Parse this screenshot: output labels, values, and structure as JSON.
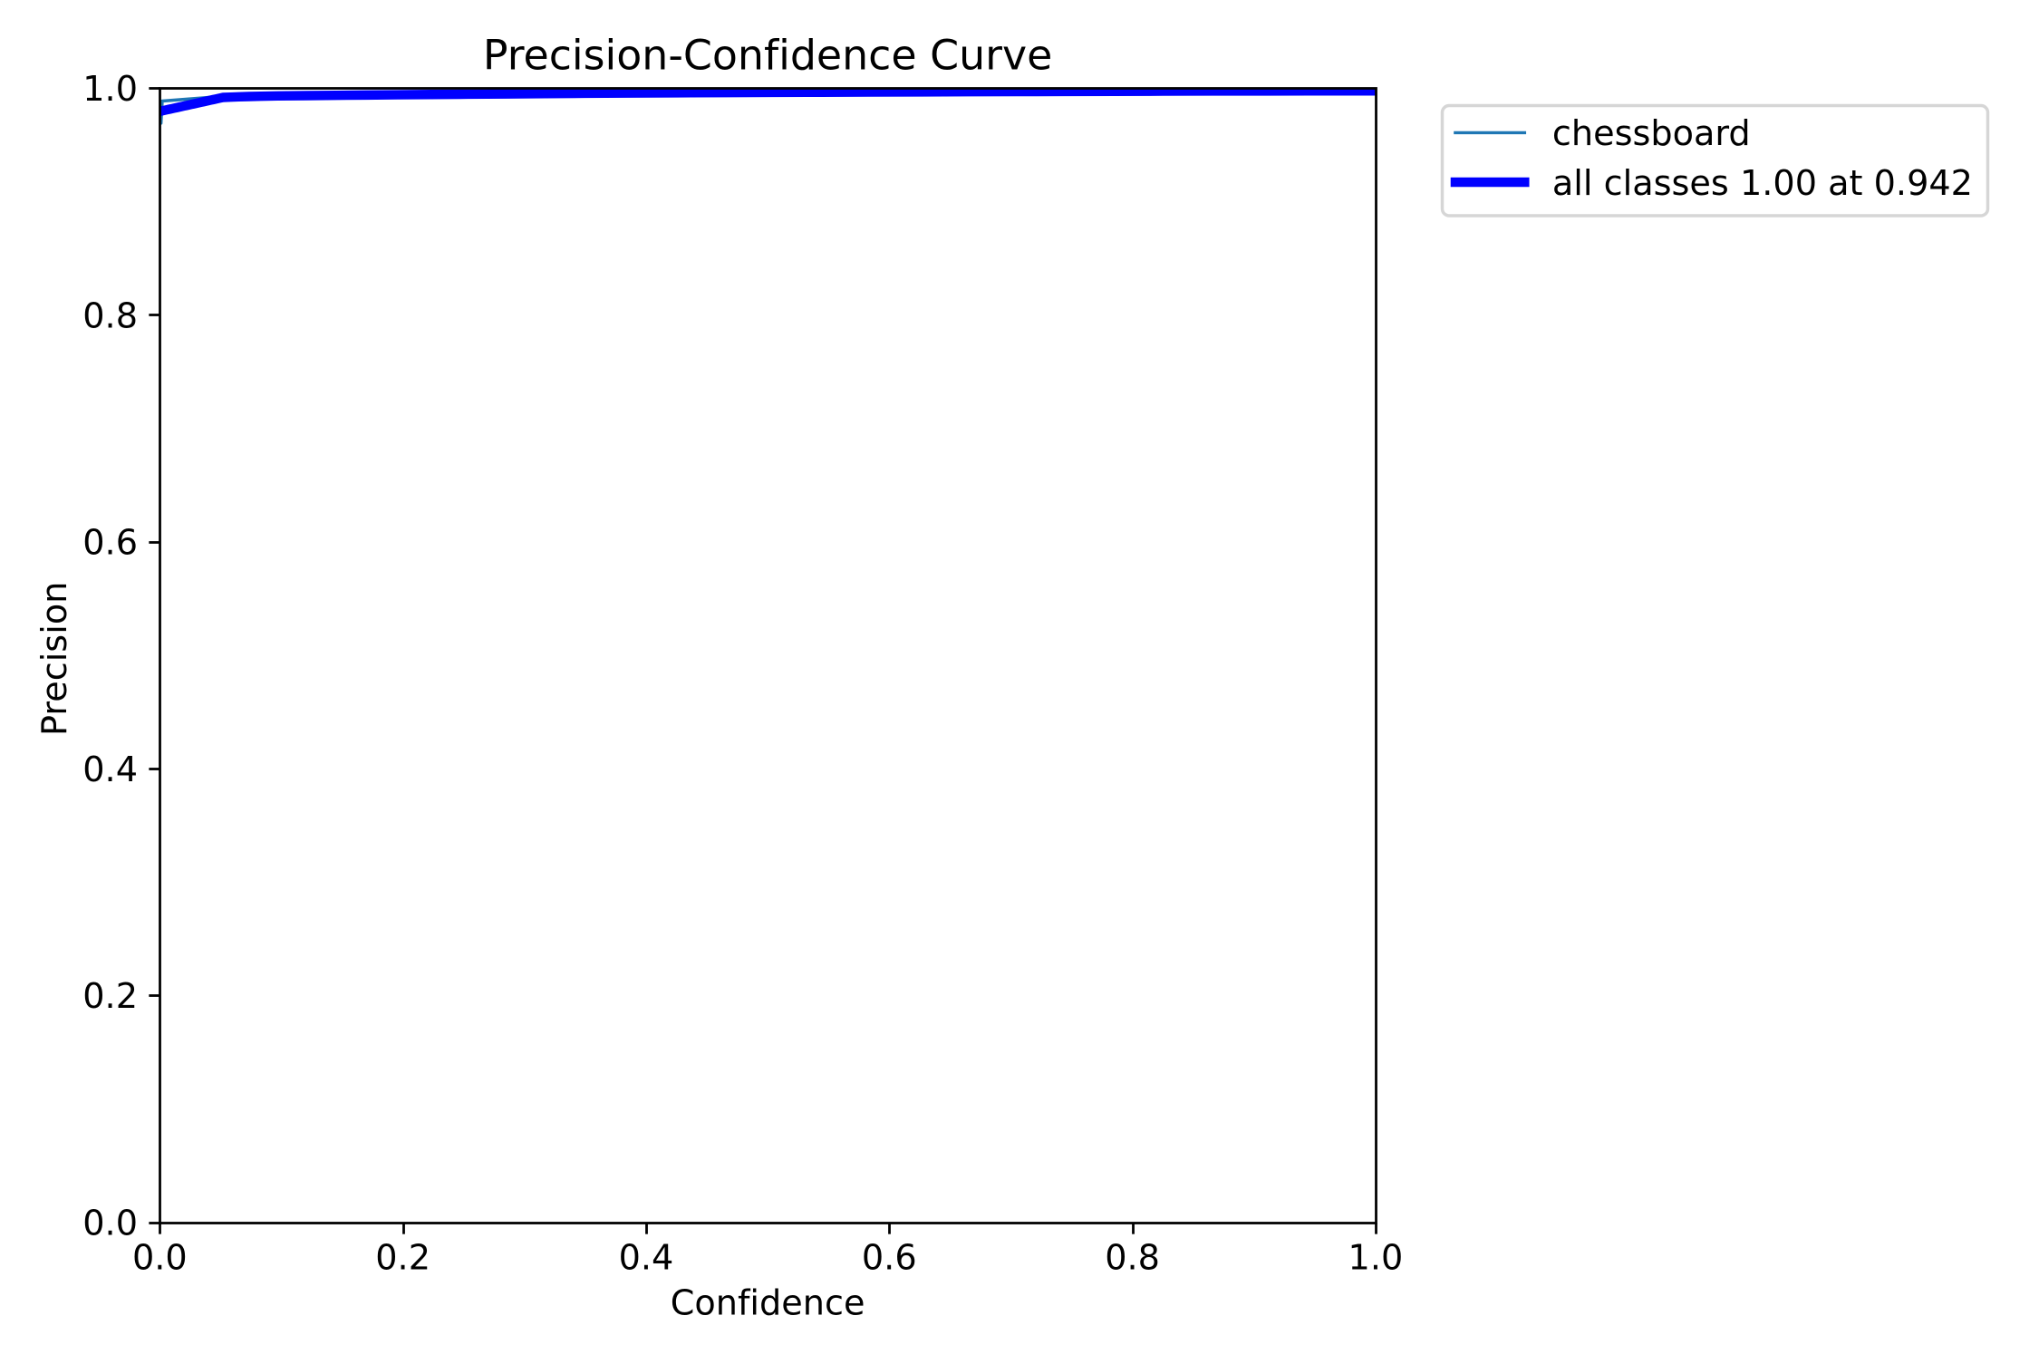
{
  "chart_data": {
    "type": "line",
    "title": "Precision-Confidence Curve",
    "xlabel": "Confidence",
    "ylabel": "Precision",
    "xlim": [
      0.0,
      1.0
    ],
    "ylim": [
      0.0,
      1.0
    ],
    "xtick_values": [
      0.0,
      0.2,
      0.4,
      0.6,
      0.8,
      1.0
    ],
    "xtick_labels": [
      "0.0",
      "0.2",
      "0.4",
      "0.6",
      "0.8",
      "1.0"
    ],
    "ytick_values": [
      0.0,
      0.2,
      0.4,
      0.6,
      0.8,
      1.0
    ],
    "ytick_labels": [
      "0.0",
      "0.2",
      "0.4",
      "0.6",
      "0.8",
      "1.0"
    ],
    "grid": false,
    "background_color": "#ffffff",
    "spine_color": "#000000",
    "text_color": "#000000",
    "legend": {
      "position": "outside upper right",
      "border_color": "#cccccc",
      "fill_color": "#ffffff",
      "fill_opacity": 0.8,
      "entries": [
        {
          "label": "chessboard",
          "color": "#1f77b4",
          "linewidth_pt": 1
        },
        {
          "label": "all classes 1.00 at 0.942",
          "color": "#0000ff",
          "linewidth_pt": 3
        }
      ]
    },
    "series": [
      {
        "name": "chessboard",
        "color": "#1f77b4",
        "linewidth_pt": 1,
        "x": [
          0.0,
          0.001,
          0.002,
          0.05,
          0.2,
          0.4,
          0.6,
          0.891,
          1.0
        ],
        "y": [
          0.969,
          0.969,
          0.9885,
          0.9925,
          0.9941,
          0.9957,
          0.9965,
          0.9974,
          0.9974
        ]
      },
      {
        "name": "all classes 1.00 at 0.942",
        "color": "#0000ff",
        "linewidth_pt": 3,
        "x": [
          0.0,
          0.002,
          0.004,
          0.006,
          0.008,
          0.01,
          0.012,
          0.014,
          0.016,
          0.018,
          0.02,
          0.022,
          0.024,
          0.026,
          0.028,
          0.03,
          0.032,
          0.034,
          0.036,
          0.038,
          0.04,
          0.042,
          0.044,
          0.046,
          0.048,
          0.0501,
          0.0521,
          0.0581,
          0.0651,
          0.0731,
          0.0831,
          0.0971,
          0.1211,
          0.1451,
          0.1692,
          0.1952,
          0.2232,
          0.2533,
          0.2853,
          0.3173,
          0.3493,
          0.3844,
          0.4244,
          0.4645,
          0.5045,
          0.5445,
          0.5846,
          0.6246,
          0.6647,
          0.7047,
          0.7447,
          0.7848,
          0.8248,
          0.8649,
          0.9049,
          0.9449,
          0.985,
          1.0
        ],
        "y": [
          0.97943,
          0.9799,
          0.98036,
          0.98083,
          0.9813,
          0.98176,
          0.98223,
          0.9827,
          0.98317,
          0.98364,
          0.98411,
          0.98458,
          0.98505,
          0.98552,
          0.98599,
          0.98646,
          0.98693,
          0.98741,
          0.98788,
          0.98835,
          0.98883,
          0.9893,
          0.98977,
          0.99025,
          0.99072,
          0.9912,
          0.99168,
          0.99194,
          0.99221,
          0.99247,
          0.99274,
          0.993,
          0.99326,
          0.99351,
          0.99377,
          0.99402,
          0.99428,
          0.99453,
          0.99478,
          0.99504,
          0.99529,
          0.99555,
          0.99578,
          0.99596,
          0.99612,
          0.99628,
          0.99643,
          0.99657,
          0.9967,
          0.99682,
          0.99695,
          0.99707,
          0.9972,
          0.99731,
          0.99738,
          0.9974,
          0.9974,
          0.9974
        ]
      }
    ]
  }
}
